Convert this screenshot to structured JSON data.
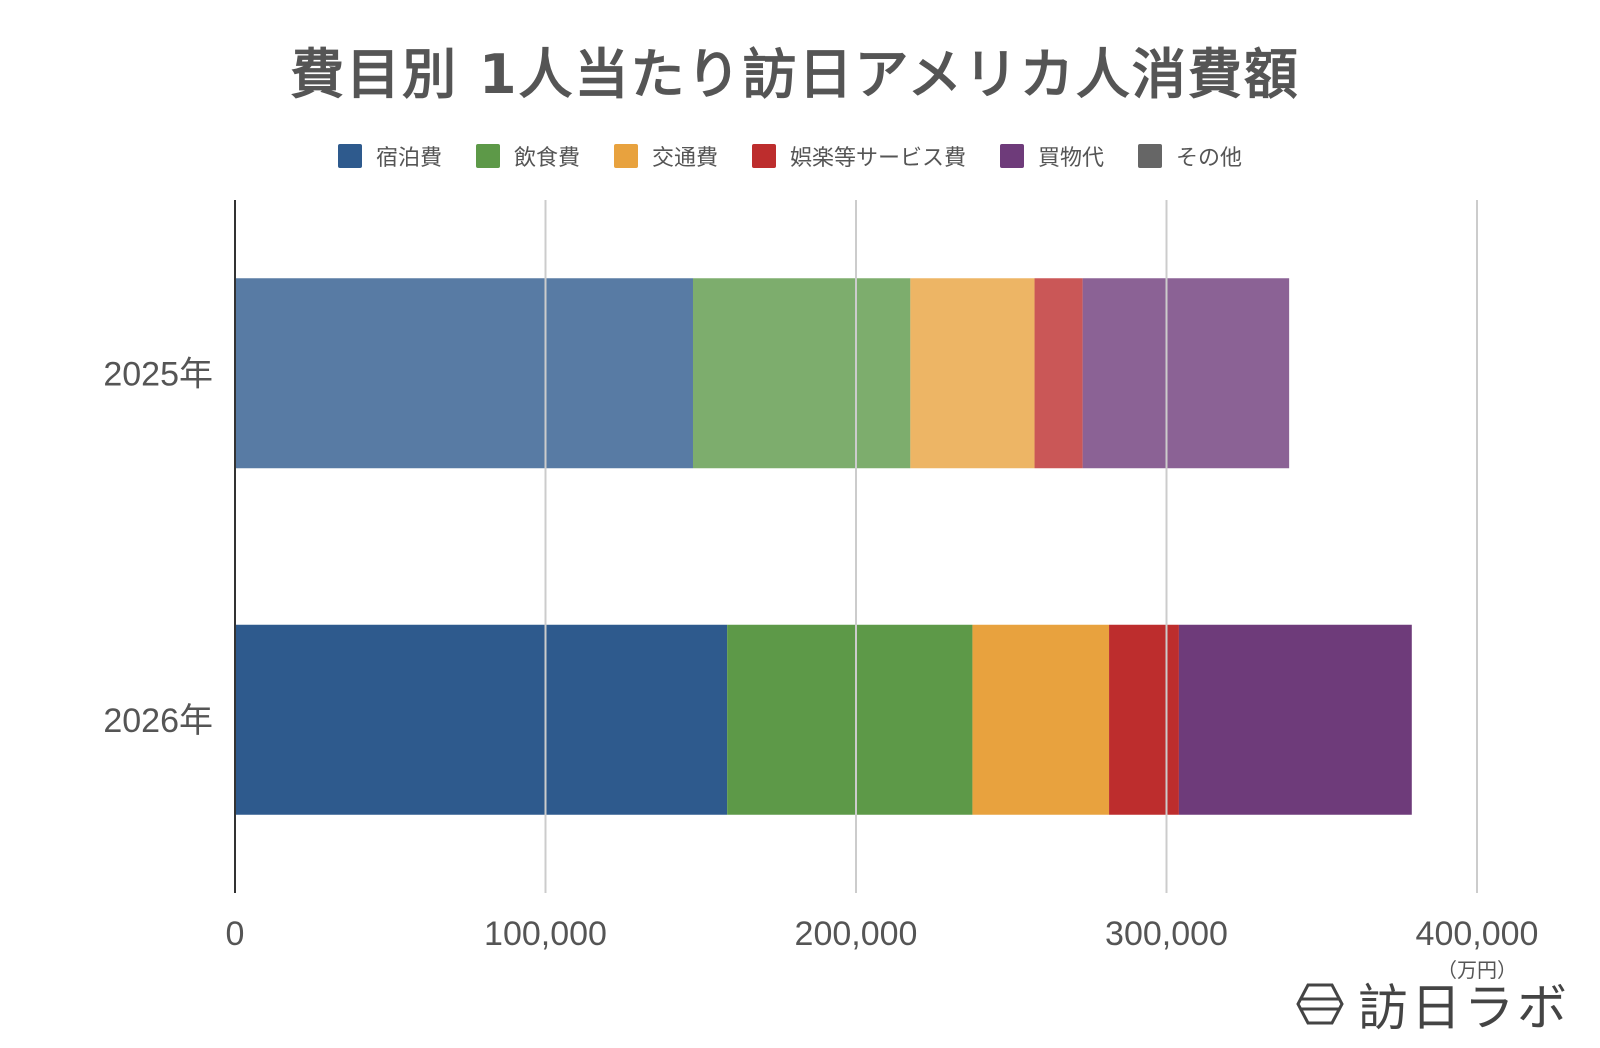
{
  "chart_data": {
    "type": "bar",
    "orientation": "horizontal",
    "stacked": true,
    "title": "費目別 1人当たり訪日アメリカ人消費額",
    "categories": [
      "2025年",
      "2026年"
    ],
    "series": [
      {
        "name": "宿泊費",
        "color": "#2E5A8D",
        "values": [
          147500,
          158500
        ]
      },
      {
        "name": "飲食費",
        "color": "#5D9948",
        "values": [
          70000,
          79000
        ]
      },
      {
        "name": "交通費",
        "color": "#E8A23E",
        "values": [
          40000,
          44000
        ]
      },
      {
        "name": "娯楽等サービス費",
        "color": "#BD2D2D",
        "values": [
          15500,
          22500
        ]
      },
      {
        "name": "買物代",
        "color": "#6E3B7A",
        "values": [
          66500,
          75000
        ]
      },
      {
        "name": "その他",
        "color": "#666666",
        "values": [
          0,
          0
        ]
      }
    ],
    "xlim": [
      0,
      400000
    ],
    "xticks": [
      "0",
      "100,000",
      "200,000",
      "300,000",
      "400,000"
    ],
    "xunit": "（万円）",
    "grid": true,
    "legend_position": "top"
  },
  "branding": {
    "logo_text": "訪日ラボ",
    "logo_icon": "hexagon-logo-icon"
  }
}
